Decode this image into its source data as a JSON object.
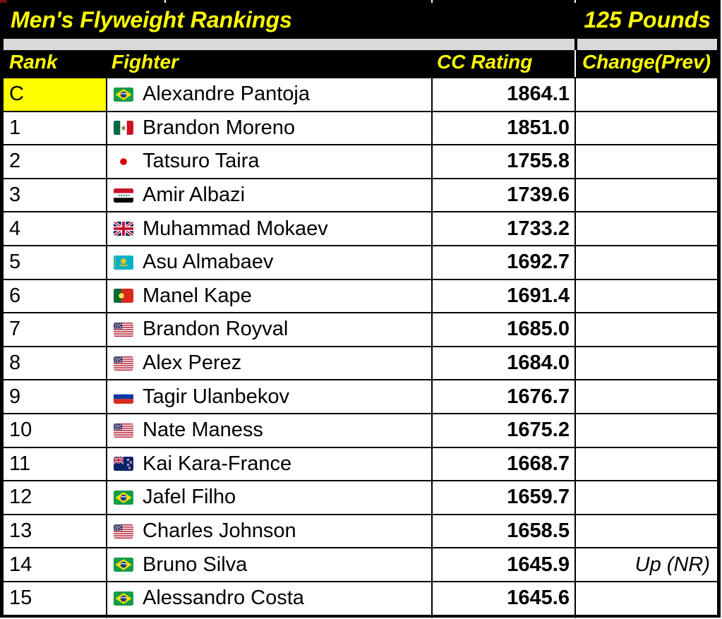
{
  "title_bar": {
    "title": "Men's Flyweight Rankings",
    "weight_class": "125 Pounds"
  },
  "table": {
    "headers": {
      "rank": "Rank",
      "fighter": "Fighter",
      "rating": "CC Rating",
      "change": "Change(Prev)"
    },
    "rows": [
      {
        "rank": "C",
        "fighter": "Alexandre Pantoja",
        "country": "br",
        "country_name": "brazil",
        "rating": "1864.1",
        "change": "",
        "champion": true
      },
      {
        "rank": "1",
        "fighter": "Brandon Moreno",
        "country": "mx",
        "country_name": "mexico",
        "rating": "1851.0",
        "change": ""
      },
      {
        "rank": "2",
        "fighter": "Tatsuro Taira",
        "country": "jp",
        "country_name": "japan",
        "rating": "1755.8",
        "change": ""
      },
      {
        "rank": "3",
        "fighter": "Amir Albazi",
        "country": "iq",
        "country_name": "iraq",
        "rating": "1739.6",
        "change": ""
      },
      {
        "rank": "4",
        "fighter": "Muhammad Mokaev",
        "country": "gb",
        "country_name": "united-kingdom",
        "rating": "1733.2",
        "change": ""
      },
      {
        "rank": "5",
        "fighter": "Asu Almabaev",
        "country": "kz",
        "country_name": "kazakhstan",
        "rating": "1692.7",
        "change": ""
      },
      {
        "rank": "6",
        "fighter": "Manel Kape",
        "country": "pt",
        "country_name": "portugal",
        "rating": "1691.4",
        "change": ""
      },
      {
        "rank": "7",
        "fighter": "Brandon Royval",
        "country": "us",
        "country_name": "united-states",
        "rating": "1685.0",
        "change": ""
      },
      {
        "rank": "8",
        "fighter": "Alex Perez",
        "country": "us",
        "country_name": "united-states",
        "rating": "1684.0",
        "change": ""
      },
      {
        "rank": "9",
        "fighter": "Tagir Ulanbekov",
        "country": "ru",
        "country_name": "russia",
        "rating": "1676.7",
        "change": ""
      },
      {
        "rank": "10",
        "fighter": "Nate Maness",
        "country": "us",
        "country_name": "united-states",
        "rating": "1675.2",
        "change": ""
      },
      {
        "rank": "11",
        "fighter": "Kai Kara-France",
        "country": "nz",
        "country_name": "new-zealand",
        "rating": "1668.7",
        "change": ""
      },
      {
        "rank": "12",
        "fighter": "Jafel Filho",
        "country": "br",
        "country_name": "brazil",
        "rating": "1659.7",
        "change": ""
      },
      {
        "rank": "13",
        "fighter": "Charles Johnson",
        "country": "us",
        "country_name": "united-states",
        "rating": "1658.5",
        "change": ""
      },
      {
        "rank": "14",
        "fighter": "Bruno Silva",
        "country": "br",
        "country_name": "brazil",
        "rating": "1645.9",
        "change": "Up (NR)"
      },
      {
        "rank": "15",
        "fighter": "Alessandro Costa",
        "country": "br",
        "country_name": "brazil",
        "rating": "1645.6",
        "change": ""
      }
    ]
  },
  "colors": {
    "header_bg": "#000000",
    "header_text": "#ffff00",
    "champion_highlight": "#ffff00",
    "separator_gray": "#d9d9d9",
    "row_bg": "#ffffff",
    "grid_border": "#000000",
    "body_text": "#000000"
  }
}
